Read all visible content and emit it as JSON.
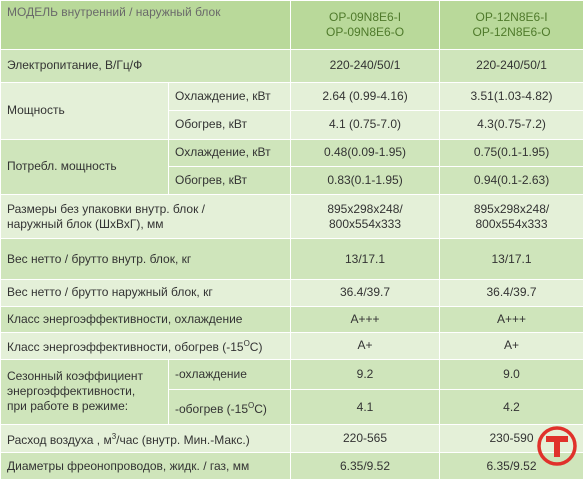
{
  "header": {
    "model": "МОДЕЛЬ  внутренний  /  наружный блок",
    "col1": [
      "OP-09N8E6-I",
      "OP-09N8E6-O"
    ],
    "col2": [
      "OP-12N8E6-I",
      "OP-12N8E6-O"
    ]
  },
  "rows": {
    "power_supply": {
      "label": "Электропитание, В/Гц/Ф",
      "v1": "220-240/50/1",
      "v2": "220-240/50/1"
    },
    "capacity": {
      "label": "Мощность",
      "cooling": {
        "sub": "Охлаждение, кВт",
        "v1": "2.64 (0.99-4.16)",
        "v2": "3.51(1.03-4.82)"
      },
      "heating": {
        "sub": "Обогрев, кВт",
        "v1": "4.1 (0.75-7.0)",
        "v2": "4.3(0.75-7.2)"
      }
    },
    "consumption": {
      "label": "Потребл. мощность",
      "cooling": {
        "sub": "Охлаждение, кВт",
        "v1": "0.48(0.09-1.95)",
        "v2": "0.75(0.1-1.95)"
      },
      "heating": {
        "sub": "Обогрев, кВт",
        "v1": "0.83(0.1-1.95)",
        "v2": "0.94(0.1-2.63)"
      }
    },
    "dimensions": {
      "label": [
        "Размеры без упаковки внутр. блок /",
        "наружный блок  (ШхВхГ), мм"
      ],
      "v1": [
        "895x298x248/",
        "800x554x333"
      ],
      "v2": [
        "895x298x248/",
        "800x554x333"
      ]
    },
    "weight_indoor": {
      "label": "Вес нетто / брутто внутр. блок, кг",
      "v1": "13/17.1",
      "v2": "13/17.1"
    },
    "weight_outdoor": {
      "label": "Вес нетто / брутто наружный блок, кг",
      "v1": "36.4/39.7",
      "v2": "36.4/39.7"
    },
    "energy_cooling": {
      "label": "Класс энергоэффективности, охлаждение",
      "v1": "A+++",
      "v2": "A+++"
    },
    "energy_heating": {
      "label_main": "Класс энергоэффективности, обогрев (-15",
      "label_sup": "O",
      "label_end": "C)",
      "v1": "A+",
      "v2": "A+"
    },
    "seasonal": {
      "label": [
        "Сезонный коэффициент",
        "энергоэффективности,",
        "при работе в режиме:"
      ],
      "cooling": {
        "sub": "-охлаждение",
        "v1": "9.2",
        "v2": "9.0"
      },
      "heating": {
        "sub_main": "-обогрев  (-15",
        "sub_sup": "O",
        "sub_end": "C)",
        "v1": "4.1",
        "v2": "4.2"
      }
    },
    "airflow": {
      "label_main": "Расход воздуха , м",
      "label_sup": "3",
      "label_end": "/час (внутр. Мин.-Макс.)",
      "v1": "220-565",
      "v2": "230-590"
    },
    "pipes": {
      "label": "Диаметры фреонопроводов, жидк. / газ, мм",
      "v1": "6.35/9.52",
      "v2": "6.35/9.52"
    }
  },
  "colors": {
    "header_bg": "#b9d99a",
    "band_dark": "#cfe5bb",
    "band_light": "#e4f0d8",
    "logo_red": "#e0312b"
  }
}
